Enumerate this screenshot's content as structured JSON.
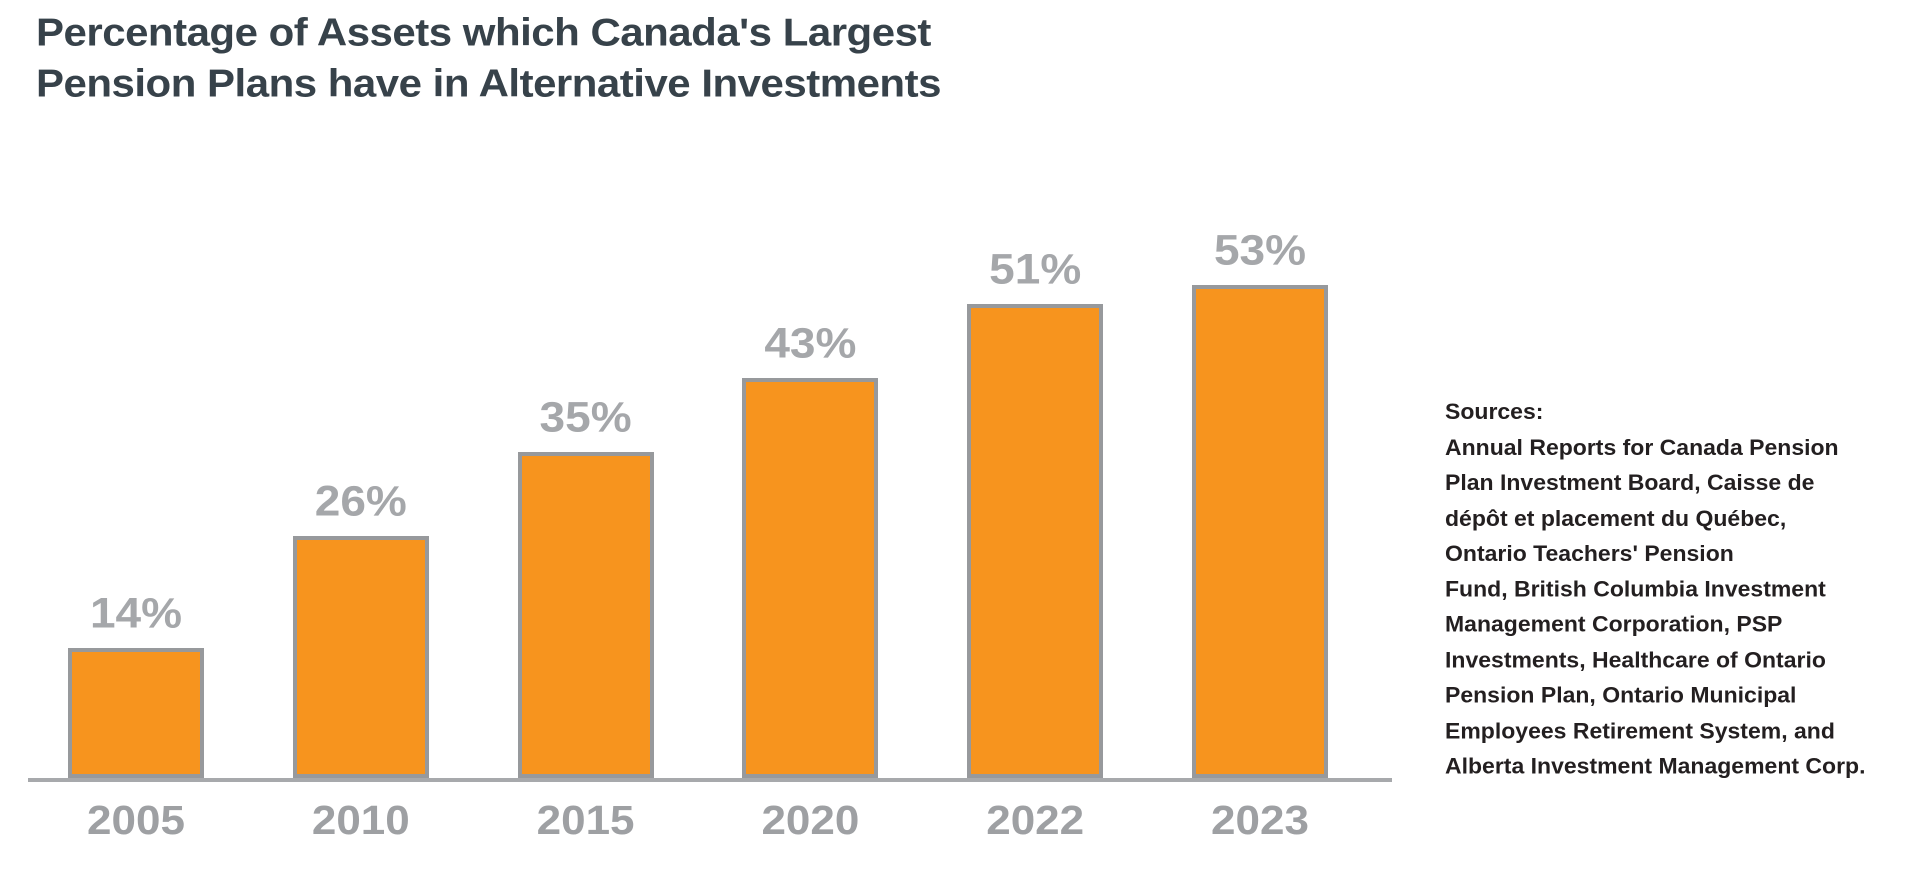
{
  "title": {
    "line1": "Percentage of Assets which Canada's Largest",
    "line2": "Pension Plans have in Alternative Investments"
  },
  "chart_data": {
    "type": "bar",
    "title": "Percentage of Assets which Canada's Largest Pension Plans have in Alternative Investments",
    "categories": [
      "2005",
      "2010",
      "2015",
      "2020",
      "2022",
      "2023"
    ],
    "values": [
      14,
      26,
      35,
      43,
      51,
      53
    ],
    "value_labels": [
      "14%",
      "26%",
      "35%",
      "43%",
      "51%",
      "53%"
    ],
    "xlabel": "",
    "ylabel": "",
    "ylim": [
      0,
      60
    ],
    "grid": false,
    "legend": null,
    "bar_color": "#F7941E",
    "bar_outline_color": "#97999C",
    "value_label_color": "#A5A7AA",
    "tick_label_color": "#9EA0A3",
    "axis_color": "#A7A9AC"
  },
  "source_note": {
    "heading": "Sources:",
    "lines": [
      "Annual Reports for Canada Pension",
      "Plan Investment Board, Caisse de",
      "dépôt et placement du Québec,",
      "Ontario Teachers' Pension",
      "Fund, British Columbia Investment",
      "Management Corporation, PSP",
      "Investments, Healthcare of Ontario",
      "Pension Plan, Ontario Municipal",
      "Employees Retirement System, and",
      "Alberta Investment Management Corp."
    ]
  },
  "colors": {
    "title_text": "#37424A",
    "accent_orange": "#F7941E",
    "gray_label": "#A5A7AA",
    "source_text": "#231F20",
    "background": "#FFFFFF"
  }
}
